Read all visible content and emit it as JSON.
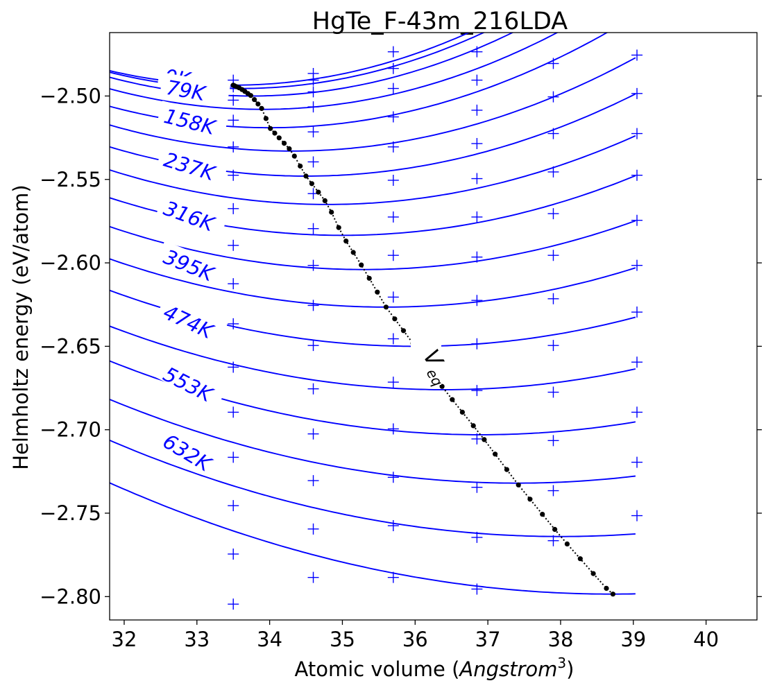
{
  "chart_data": {
    "type": "line",
    "title": "HgTe_F-43m_216LDA",
    "xlabel": "Atomic volume (",
    "xlabel_italic": "Angstrom",
    "xlabel_sup": "3",
    "xlabel_close": ")",
    "ylabel": "Helmholtz energy (eV/atom)",
    "xlim": [
      31.8,
      40.7
    ],
    "ylim": [
      -2.814,
      -2.462
    ],
    "xticks": [
      32,
      33,
      34,
      35,
      36,
      37,
      38,
      39,
      40
    ],
    "xtick_labels": [
      "32",
      "33",
      "34",
      "35",
      "36",
      "37",
      "38",
      "39",
      "40"
    ],
    "yticks": [
      -2.8,
      -2.75,
      -2.7,
      -2.65,
      -2.6,
      -2.55,
      -2.5
    ],
    "ytick_labels": [
      "−2.80",
      "−2.75",
      "−2.70",
      "−2.65",
      "−2.60",
      "−2.55",
      "−2.50"
    ],
    "grid": false,
    "curve_color": "#0000ff",
    "marker_color": "#0000ff",
    "eq_color": "#000000",
    "curves": [
      {
        "a": -2.4935,
        "c": 0.003,
        "v0": 33.5
      },
      {
        "a": -2.4955,
        "c": 0.003,
        "v0": 33.6
      },
      {
        "a": -2.5,
        "c": 0.00295,
        "v0": 33.75
      },
      {
        "a": -2.508,
        "c": 0.0028,
        "v0": 33.9
      },
      {
        "a": -2.519,
        "c": 0.00265,
        "v0": 34.0
      },
      {
        "a": -2.533,
        "c": 0.0025,
        "v0": 34.3
      },
      {
        "a": -2.548,
        "c": 0.0024,
        "v0": 34.5
      },
      {
        "a": -2.565,
        "c": 0.0023,
        "v0": 34.8
      },
      {
        "a": -2.5835,
        "c": 0.0022,
        "v0": 35.0
      },
      {
        "a": -2.604,
        "c": 0.0021,
        "v0": 35.3
      },
      {
        "a": -2.6265,
        "c": 0.002,
        "v0": 35.6
      },
      {
        "a": -2.65,
        "c": 0.0019,
        "v0": 36.0
      },
      {
        "a": -2.676,
        "c": 0.0018,
        "v0": 36.4
      },
      {
        "a": -2.703,
        "c": 0.0017,
        "v0": 36.9
      },
      {
        "a": -2.732,
        "c": 0.0016,
        "v0": 37.4
      },
      {
        "a": -2.764,
        "c": 0.0015,
        "v0": 38.0
      },
      {
        "a": -2.7985,
        "c": 0.0014,
        "v0": 38.7
      }
    ],
    "curve_x_range": [
      31.8,
      39.03
    ],
    "temperature_labels": [
      {
        "text": "0K",
        "x": 32.55,
        "y": -2.489,
        "angle": 8
      },
      {
        "text": "79K",
        "x": 32.58,
        "y": -2.4955,
        "angle": 10
      },
      {
        "text": "158K",
        "x": 32.55,
        "y": -2.5125,
        "angle": 14
      },
      {
        "text": "237K",
        "x": 32.55,
        "y": -2.5385,
        "angle": 17
      },
      {
        "text": "316K",
        "x": 32.55,
        "y": -2.5675,
        "angle": 20
      },
      {
        "text": "395K",
        "x": 32.55,
        "y": -2.5965,
        "angle": 22
      },
      {
        "text": "474K",
        "x": 32.55,
        "y": -2.6295,
        "angle": 25
      },
      {
        "text": "553K",
        "x": 32.55,
        "y": -2.6665,
        "angle": 27
      },
      {
        "text": "632K",
        "x": 32.55,
        "y": -2.7065,
        "angle": 31
      }
    ],
    "data_points_x": [
      33.5,
      34.6,
      35.7,
      36.85,
      37.9,
      39.05
    ],
    "data_points": [
      [
        -2.4905,
        -2.4945,
        -2.5025,
        -2.5145,
        -2.5305,
        -2.5475,
        -2.5675,
        -2.5895,
        -2.6125,
        -2.6365,
        -2.6625,
        -2.6895,
        -2.7165,
        -2.7455,
        -2.7745,
        -2.8045
      ],
      [
        -2.4865,
        -2.4905,
        -2.4975,
        -2.5065,
        -2.5215,
        -2.5395,
        -2.5585,
        -2.5795,
        -2.6015,
        -2.6255,
        -2.6495,
        -2.6755,
        -2.7025,
        -2.7305,
        -2.7595,
        -2.7885
      ],
      [
        -2.4735,
        -2.4835,
        -2.4955,
        -2.5125,
        -2.5305,
        -2.5505,
        -2.5725,
        -2.5955,
        -2.6205,
        -2.6455,
        -2.6715,
        -2.6995,
        -2.7285,
        -2.7575,
        -2.7885
      ],
      [
        -2.4735,
        -2.4905,
        -2.5085,
        -2.5285,
        -2.5495,
        -2.5725,
        -2.5965,
        -2.6225,
        -2.6485,
        -2.6765,
        -2.7055,
        -2.7345,
        -2.7645,
        -2.7955
      ],
      [
        -2.4805,
        -2.5005,
        -2.5225,
        -2.5455,
        -2.5705,
        -2.5955,
        -2.6215,
        -2.6495,
        -2.6775,
        -2.7065,
        -2.7365,
        -2.7665
      ],
      [
        -2.4755,
        -2.4985,
        -2.5225,
        -2.5475,
        -2.5745,
        -2.6015,
        -2.6295,
        -2.6595,
        -2.6895,
        -2.7195,
        -2.7515
      ]
    ],
    "eq_points_x": [
      33.5,
      33.52,
      33.55,
      33.58,
      33.62,
      33.66,
      33.7,
      33.74,
      33.79,
      33.84,
      33.89,
      33.95,
      34.01,
      34.07,
      34.13,
      34.2,
      34.27,
      34.34,
      34.42,
      34.5,
      34.58,
      34.67,
      34.76,
      34.85,
      34.95,
      35.05,
      35.15,
      35.26,
      35.37,
      35.48,
      35.6,
      35.72,
      35.84,
      35.97,
      36.1,
      36.23,
      36.37,
      36.51,
      36.65,
      36.8,
      36.95,
      37.1,
      37.26,
      37.42,
      37.58,
      37.75,
      37.92,
      38.09,
      38.27,
      38.45,
      38.63,
      38.72
    ],
    "eq_label": "V",
    "eq_label_sub": "eq"
  }
}
